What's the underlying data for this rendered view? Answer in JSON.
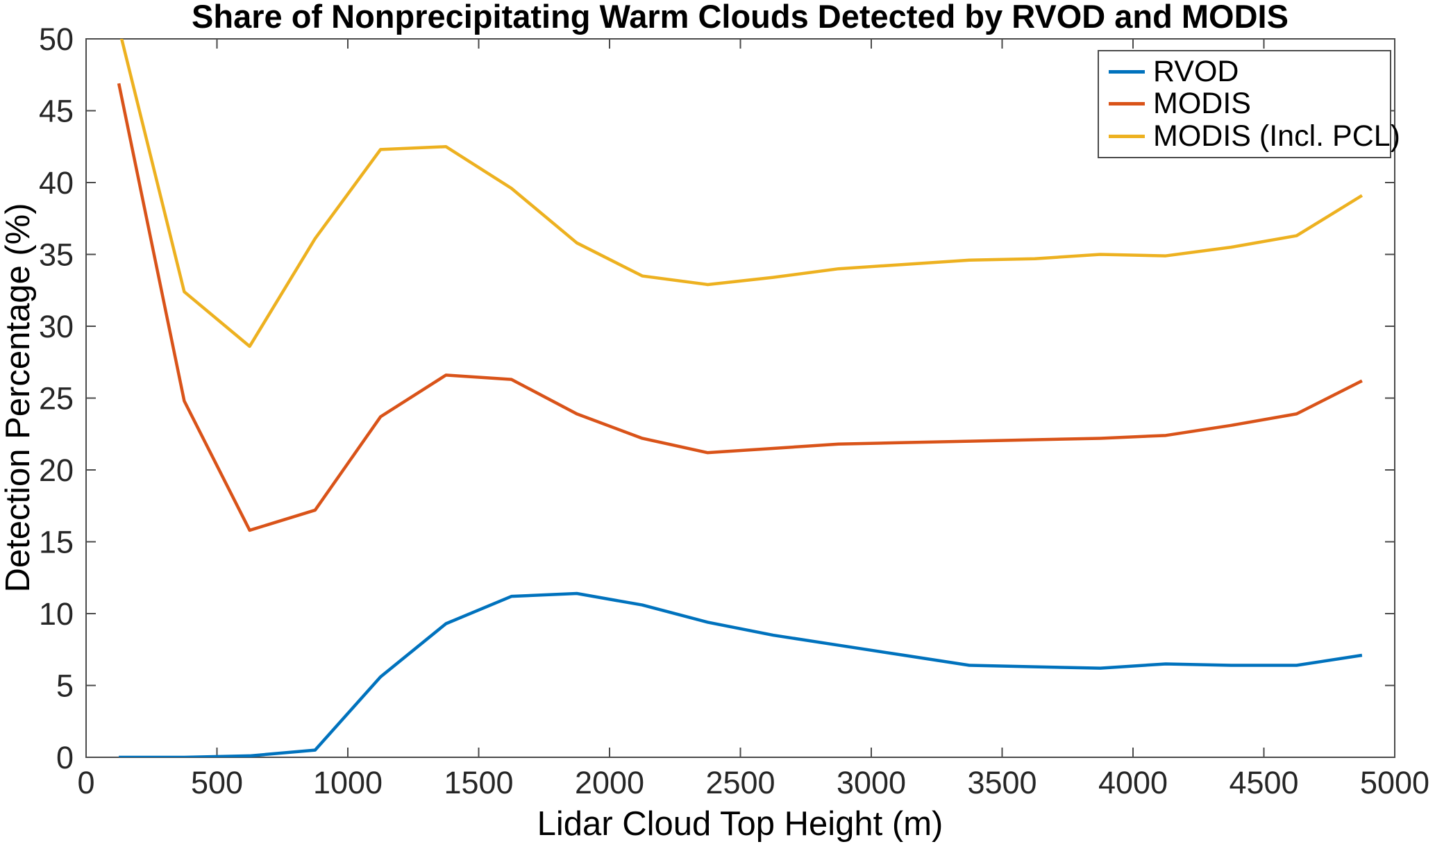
{
  "chart_data": {
    "type": "line",
    "title": "Share of Nonprecipitating Warm Clouds Detected by RVOD and MODIS",
    "xlabel": "Lidar Cloud Top Height (m)",
    "ylabel": "Detection Percentage (%)",
    "xlim": [
      0,
      5000
    ],
    "ylim": [
      0,
      50
    ],
    "x_ticks": [
      0,
      500,
      1000,
      1500,
      2000,
      2500,
      3000,
      3500,
      4000,
      4500,
      5000
    ],
    "y_ticks": [
      0,
      5,
      10,
      15,
      20,
      25,
      30,
      35,
      40,
      45,
      50
    ],
    "grid": false,
    "legend_position": "top-right-inside",
    "x": [
      125,
      375,
      625,
      875,
      1125,
      1375,
      1625,
      1875,
      2125,
      2375,
      2625,
      2875,
      3125,
      3375,
      3625,
      3875,
      4125,
      4375,
      4625,
      4875
    ],
    "series": [
      {
        "name": "RVOD",
        "color": "#0072BD",
        "values": [
          0,
          0,
          0.1,
          0.5,
          5.6,
          9.3,
          11.2,
          11.4,
          10.6,
          9.4,
          8.5,
          7.8,
          7.1,
          6.4,
          6.3,
          6.2,
          6.5,
          6.4,
          6.4,
          7.1
        ]
      },
      {
        "name": "MODIS",
        "color": "#D95319",
        "values": [
          46.9,
          24.8,
          15.8,
          17.2,
          23.7,
          26.6,
          26.3,
          23.9,
          22.2,
          21.2,
          21.5,
          21.8,
          21.9,
          22.0,
          22.1,
          22.2,
          22.4,
          23.1,
          23.9,
          26.2
        ]
      },
      {
        "name": "MODIS (Incl. PCL)",
        "color": "#EDB120",
        "values": [
          50.8,
          32.4,
          28.6,
          36.1,
          42.3,
          42.5,
          39.6,
          35.8,
          33.5,
          32.9,
          33.4,
          34.0,
          34.3,
          34.6,
          34.7,
          35.0,
          34.9,
          35.5,
          36.3,
          39.1
        ]
      }
    ],
    "axis_color": "#4a4a4a"
  }
}
